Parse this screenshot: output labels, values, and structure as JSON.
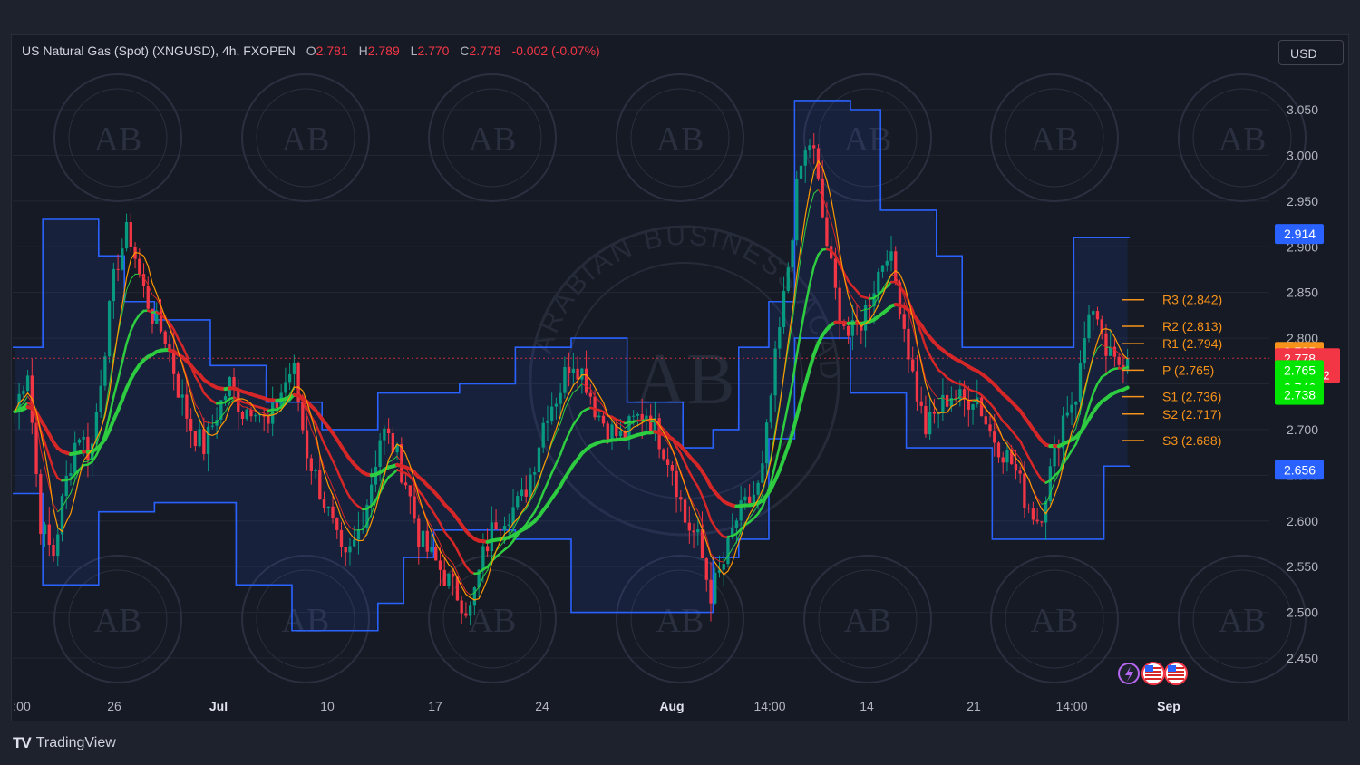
{
  "header": {
    "symbol": "US Natural Gas (Spot) (XNGUSD), 4h, FXOPEN",
    "o_label": "O",
    "o_value": "2.781",
    "h_label": "H",
    "h_value": "2.789",
    "l_label": "L",
    "l_value": "2.770",
    "c_label": "C",
    "c_value": "2.778",
    "change": "-0.002 (-0.07%)"
  },
  "currency_button": "USD",
  "branding": {
    "logo": "TV",
    "name": "TradingView"
  },
  "watermark": {
    "initials": "AB",
    "text": "ARABIAN BUSINESS ACADEMY"
  },
  "colors": {
    "up": "#089981",
    "down": "#f23645",
    "channel": "#2962ff",
    "pivot": "#f7931a",
    "ma_green": "#2ecc40",
    "ma_red": "#d62728",
    "ma_orange": "#ff9800",
    "background": "#161a25"
  },
  "chart_data": {
    "type": "candlestick",
    "timeframe": "4h",
    "ylim": [
      2.42,
      3.08
    ],
    "y_ticks": [
      "2.450",
      "2.500",
      "2.550",
      "2.600",
      "2.650",
      "2.700",
      "2.750",
      "2.800",
      "2.850",
      "2.900",
      "2.950",
      "3.000",
      "3.050"
    ],
    "x_ticks": [
      ":00",
      "26",
      "Jul",
      "10",
      "17",
      "24",
      "Aug",
      "14:00",
      "14",
      "21",
      "14:00",
      "Sep"
    ],
    "x_ticks_bold": [
      "Jul",
      "Aug",
      "Sep"
    ],
    "pivot_levels": [
      {
        "label": "R3 (2.842)",
        "value": 2.842
      },
      {
        "label": "R2 (2.813)",
        "value": 2.813
      },
      {
        "label": "R1 (2.794)",
        "value": 2.794
      },
      {
        "label": "P (2.765)",
        "value": 2.765
      },
      {
        "label": "S1 (2.736)",
        "value": 2.736
      },
      {
        "label": "S2 (2.717)",
        "value": 2.717
      },
      {
        "label": "S3 (2.688)",
        "value": 2.688
      }
    ],
    "price_badges": [
      {
        "text": "2.914",
        "value": 2.914,
        "color": "#2962ff"
      },
      {
        "text": "2.785",
        "value": 2.785,
        "color": "#f7931a"
      },
      {
        "text": "2.778",
        "sub": "01:18:02",
        "value": 2.778,
        "color": "#f23645"
      },
      {
        "text": "2.765",
        "value": 2.765,
        "color": "#00e600"
      },
      {
        "text": "2.746",
        "value": 2.746,
        "color": "#00e600"
      },
      {
        "text": "2.738",
        "value": 2.738,
        "color": "#00e600"
      },
      {
        "text": "2.656",
        "value": 2.656,
        "color": "#2962ff"
      }
    ],
    "current_price": 2.778,
    "close_path": [
      2.72,
      2.77,
      2.6,
      2.56,
      2.64,
      2.7,
      2.67,
      2.78,
      2.88,
      2.92,
      2.86,
      2.82,
      2.8,
      2.74,
      2.7,
      2.68,
      2.72,
      2.75,
      2.72,
      2.73,
      2.7,
      2.74,
      2.77,
      2.68,
      2.64,
      2.6,
      2.55,
      2.58,
      2.63,
      2.7,
      2.68,
      2.64,
      2.58,
      2.56,
      2.54,
      2.52,
      2.5,
      2.56,
      2.6,
      2.61,
      2.62,
      2.66,
      2.72,
      2.74,
      2.78,
      2.76,
      2.72,
      2.7,
      2.69,
      2.71,
      2.72,
      2.69,
      2.66,
      2.6,
      2.58,
      2.52,
      2.55,
      2.6,
      2.62,
      2.64,
      2.76,
      2.86,
      2.98,
      3.02,
      2.92,
      2.84,
      2.8,
      2.82,
      2.86,
      2.9,
      2.84,
      2.76,
      2.7,
      2.72,
      2.74,
      2.73,
      2.74,
      2.7,
      2.68,
      2.66,
      2.62,
      2.6,
      2.66,
      2.72,
      2.74,
      2.84,
      2.79,
      2.77,
      2.78
    ],
    "upper_channel": [
      2.79,
      2.93,
      2.93,
      2.89,
      2.84,
      2.82,
      2.82,
      2.77,
      2.77,
      2.73,
      2.73,
      2.7,
      2.7,
      2.74,
      2.74,
      2.74,
      2.75,
      2.75,
      2.79,
      2.79,
      2.8,
      2.8,
      2.73,
      2.73,
      2.68,
      2.7,
      2.79,
      2.84,
      3.06,
      3.06,
      3.05,
      2.94,
      2.94,
      2.89,
      2.79,
      2.79,
      2.79,
      2.79,
      2.91,
      2.91
    ],
    "lower_channel": [
      2.63,
      2.53,
      2.53,
      2.61,
      2.61,
      2.62,
      2.62,
      2.62,
      2.53,
      2.53,
      2.48,
      2.48,
      2.48,
      2.51,
      2.56,
      2.59,
      2.59,
      2.59,
      2.58,
      2.58,
      2.5,
      2.5,
      2.5,
      2.5,
      2.5,
      2.56,
      2.58,
      2.69,
      2.8,
      2.8,
      2.74,
      2.74,
      2.68,
      2.68,
      2.68,
      2.58,
      2.58,
      2.58,
      2.58,
      2.66
    ]
  }
}
